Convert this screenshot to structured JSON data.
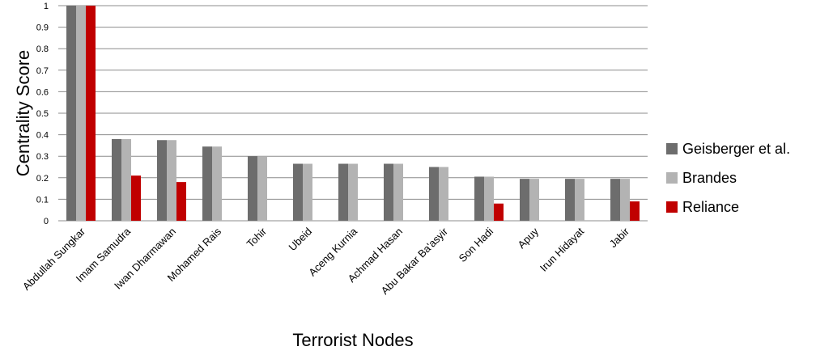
{
  "chart_data": {
    "type": "bar",
    "categories": [
      "Abdullah Sungkar",
      "Imam Samudra",
      "Iwan Dharmawan",
      "Mohamed Rais",
      "Tohir",
      "Ubeid",
      "Aceng Kurnia",
      "Achmad Hasan",
      "Abu Bakar Ba'asyir",
      "Son Hadi",
      "Apuy",
      "Irun Hidayat",
      "Jabir"
    ],
    "series": [
      {
        "name": "Geisberger et al.",
        "color": "#6d6d6d",
        "values": [
          1,
          0.38,
          0.375,
          0.345,
          0.3,
          0.265,
          0.265,
          0.265,
          0.25,
          0.205,
          0.195,
          0.195,
          0.195
        ]
      },
      {
        "name": "Brandes",
        "color": "#b3b3b3",
        "values": [
          1,
          0.38,
          0.375,
          0.345,
          0.3,
          0.265,
          0.265,
          0.265,
          0.25,
          0.205,
          0.195,
          0.195,
          0.195
        ]
      },
      {
        "name": "Reliance",
        "color": "#c00000",
        "values": [
          1,
          0.21,
          0.18,
          0,
          0,
          0,
          0,
          0,
          0,
          0.08,
          0,
          0,
          0.09
        ]
      }
    ],
    "xlabel": "Terrorist Nodes",
    "ylabel": "Centrality  Score",
    "ylim": [
      0,
      1
    ],
    "yticks": [
      "0",
      "0.1",
      "0.2",
      "0.3",
      "0.4",
      "0.5",
      "0.6",
      "0.7",
      "0.8",
      "0.9",
      "1"
    ],
    "grid": true,
    "legend_position": "right"
  }
}
